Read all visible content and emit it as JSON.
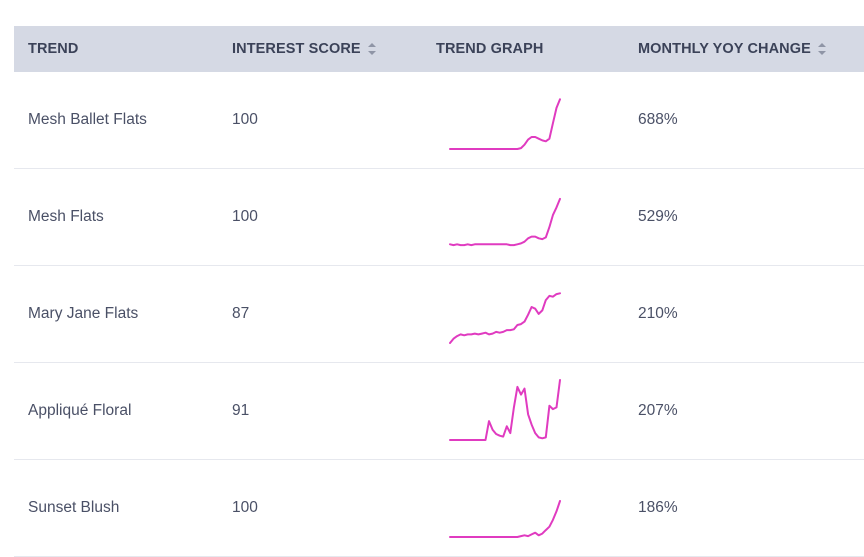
{
  "header": {
    "trend": "TREND",
    "interest_score": "INTEREST SCORE",
    "trend_graph": "TREND GRAPH",
    "monthly_yoy_change": "MONTHLY YOY CHANGE"
  },
  "colors": {
    "header_bg": "#d5d9e4",
    "sparkline": "#e03bc0",
    "text": "#4a5066"
  },
  "icons": {
    "sort": "sort-icon"
  },
  "rows": [
    {
      "trend": "Mesh Ballet Flats",
      "score": "100",
      "change": "688%",
      "spark": [
        0,
        0,
        0,
        0,
        0,
        0,
        0,
        0,
        0,
        0,
        0,
        0,
        0,
        0,
        0,
        0,
        0,
        0,
        0,
        0,
        1,
        5,
        11,
        14,
        14,
        12,
        10,
        9,
        12,
        30,
        48,
        58
      ]
    },
    {
      "trend": "Mesh Flats",
      "score": "100",
      "change": "529%",
      "spark": [
        2,
        1,
        2,
        1,
        1,
        2,
        1,
        2,
        2,
        2,
        2,
        2,
        2,
        2,
        2,
        2,
        2,
        1,
        1,
        2,
        3,
        5,
        9,
        11,
        11,
        9,
        8,
        10,
        22,
        36,
        45,
        55
      ]
    },
    {
      "trend": "Mary Jane Flats",
      "score": "87",
      "change": "210%",
      "spark": [
        0,
        5,
        8,
        10,
        9,
        10,
        10,
        11,
        10,
        11,
        12,
        10,
        11,
        13,
        12,
        13,
        15,
        15,
        16,
        21,
        22,
        25,
        33,
        42,
        40,
        34,
        38,
        50,
        55,
        54,
        57,
        58
      ]
    },
    {
      "trend": "Appliqué Floral",
      "score": "91",
      "change": "207%",
      "spark": [
        0,
        0,
        0,
        0,
        0,
        0,
        0,
        0,
        0,
        0,
        0,
        22,
        12,
        7,
        5,
        4,
        16,
        8,
        38,
        62,
        53,
        60,
        30,
        18,
        8,
        3,
        2,
        3,
        40,
        36,
        38,
        70
      ]
    },
    {
      "trend": "Sunset Blush",
      "score": "100",
      "change": "186%",
      "spark": [
        0,
        0,
        0,
        0,
        0,
        0,
        0,
        0,
        0,
        0,
        0,
        0,
        0,
        0,
        0,
        0,
        0,
        0,
        0,
        0,
        1,
        2,
        1,
        3,
        5,
        2,
        4,
        8,
        12,
        20,
        30,
        42
      ]
    }
  ]
}
